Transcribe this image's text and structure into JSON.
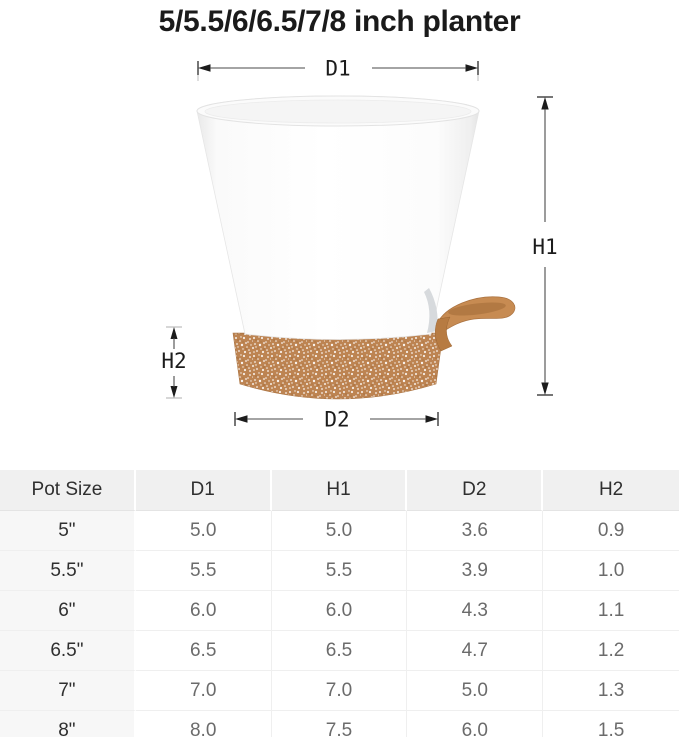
{
  "title": "5/5.5/6/6.5/7/8 inch planter",
  "diagram": {
    "labels": {
      "d1": "D1",
      "h1": "H1",
      "h2": "H2",
      "d2": "D2"
    },
    "colors": {
      "pot": "#ffffff",
      "saucer": "#bd8452",
      "spout": "#c78b52",
      "dimension_line": "#4a4a4a"
    }
  },
  "table": {
    "headers": [
      "Pot Size",
      "D1",
      "H1",
      "D2",
      "H2"
    ],
    "rows": [
      [
        "5\"",
        "5.0",
        "5.0",
        "3.6",
        "0.9"
      ],
      [
        "5.5\"",
        "5.5",
        "5.5",
        "3.9",
        "1.0"
      ],
      [
        "6\"",
        "6.0",
        "6.0",
        "4.3",
        "1.1"
      ],
      [
        "6.5\"",
        "6.5",
        "6.5",
        "4.7",
        "1.2"
      ],
      [
        "7\"",
        "7.0",
        "7.0",
        "5.0",
        "1.3"
      ],
      [
        "8\"",
        "8.0",
        "7.5",
        "6.0",
        "1.5"
      ]
    ]
  }
}
